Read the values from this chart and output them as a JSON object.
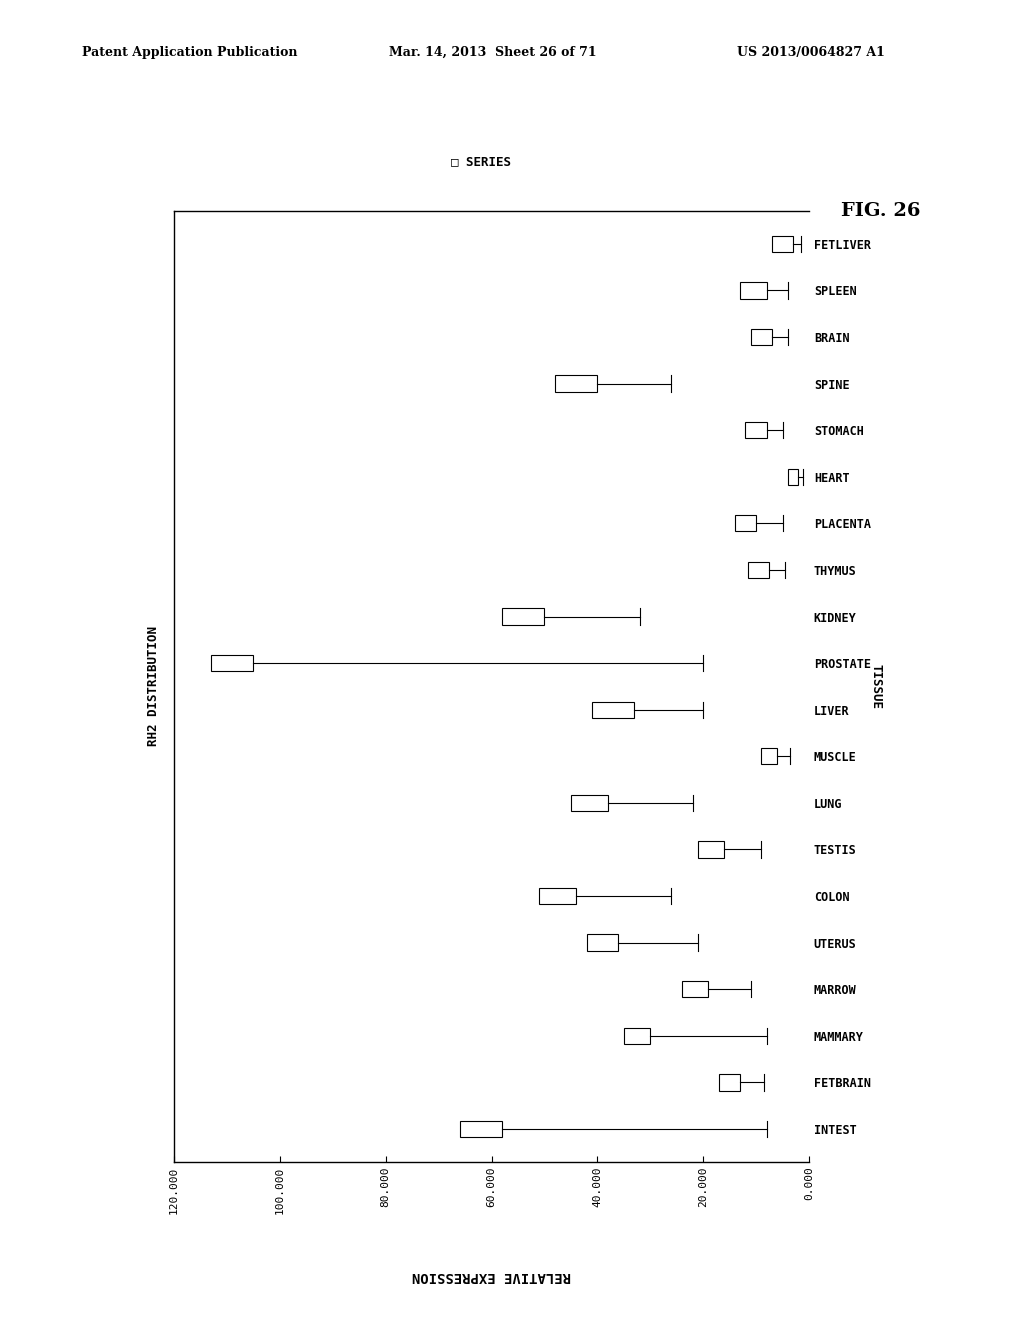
{
  "tissues": [
    "FETLIVER",
    "SPLEEN",
    "BRAIN",
    "SPINE",
    "STOMACH",
    "HEART",
    "PLACENTA",
    "THYMUS",
    "KIDNEY",
    "PROSTATE",
    "LIVER",
    "MUSCLE",
    "LUNG",
    "TESTIS",
    "COLON",
    "UTERUS",
    "MARROW",
    "MAMMARY",
    "FETBRAIN",
    "INTEST"
  ],
  "bar_values": [
    3000,
    8000,
    7000,
    40000,
    8000,
    2000,
    10000,
    7500,
    50000,
    105000,
    33000,
    6000,
    38000,
    16000,
    44000,
    36000,
    19000,
    30000,
    13000,
    58000
  ],
  "bar_widths": [
    4000,
    5000,
    4000,
    8000,
    4000,
    2000,
    4000,
    4000,
    8000,
    8000,
    8000,
    3000,
    7000,
    5000,
    7000,
    6000,
    5000,
    5000,
    4000,
    8000
  ],
  "whisker_left": [
    1500,
    4000,
    3000,
    14000,
    3000,
    800,
    5000,
    3000,
    18000,
    85000,
    13000,
    2500,
    16000,
    7000,
    18000,
    15000,
    8000,
    22000,
    4500,
    50000
  ],
  "xlim_min": 0,
  "xlim_max": 120000,
  "xticks": [
    0,
    20000,
    40000,
    60000,
    80000,
    100000,
    120000
  ],
  "xticklabels": [
    "0.000",
    "20.000",
    "40.000",
    "60.000",
    "80.000",
    "100.000",
    "120.000"
  ],
  "xlabel": "RELATIVE EXPRESSION",
  "ylabel": "RH2 DISTRIBUTION",
  "tissue_label": "TISSUE",
  "legend_label": "SERIES",
  "fig_label": "FIG. 26",
  "header_left": "Patent Application Publication",
  "header_mid": "Mar. 14, 2013  Sheet 26 of 71",
  "header_right": "US 2013/0064827 A1",
  "background_color": "#ffffff",
  "bar_color": "#ffffff",
  "bar_edge_color": "#000000",
  "error_color": "#000000"
}
